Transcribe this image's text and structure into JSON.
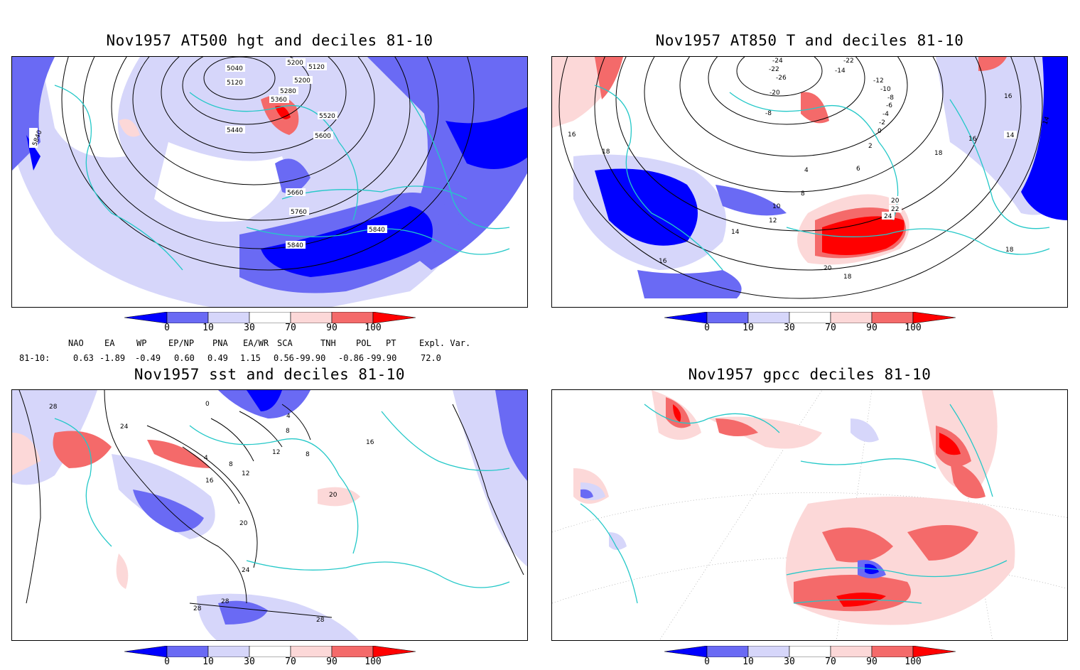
{
  "panels": [
    {
      "title": "Nov1957 AT500 hgt and deciles 81-10",
      "contour_labels": [
        "5040",
        "5200",
        "5120",
        "5120",
        "5200",
        "5280",
        "5360",
        "5520",
        "5440",
        "5600",
        "5840",
        "5660",
        "5760",
        "5840",
        "5840"
      ]
    },
    {
      "title": "Nov1957 AT850 T and deciles 81-10",
      "contour_labels": [
        "-24",
        "-22",
        "-26",
        "-22",
        "-20",
        "-14",
        "-12",
        "-10",
        "-8",
        "-8",
        "-6",
        "-4",
        "-2",
        "0",
        "2",
        "4",
        "6",
        "8",
        "10",
        "12",
        "14",
        "16",
        "16",
        "18",
        "18",
        "16",
        "14",
        "14",
        "20",
        "22",
        "24",
        "20",
        "18",
        "18",
        "16"
      ]
    },
    {
      "title": "Nov1957 sst and deciles 81-10",
      "contour_labels": [
        "28",
        "24",
        "0",
        "4",
        "4",
        "8",
        "12",
        "16",
        "8",
        "12",
        "8",
        "16",
        "20",
        "20",
        "24",
        "28",
        "28",
        "28"
      ]
    },
    {
      "title": "Nov1957 gpcc deciles 81-10",
      "contour_labels": []
    }
  ],
  "colorbar": {
    "labels": [
      "0",
      "10",
      "30",
      "70",
      "90",
      "100"
    ],
    "colors": [
      "#0000ff",
      "#6a6af4",
      "#d6d6fa",
      "#ffffff",
      "#fcd8d8",
      "#f46a6a",
      "#ff0000"
    ]
  },
  "indices": {
    "row_label": "81-10:",
    "headers": [
      "NAO",
      "EA",
      "WP",
      "EP/NP",
      "PNA",
      "EA/WR",
      "SCA",
      "TNH",
      "POL",
      "PT",
      "Expl. Var."
    ],
    "values": [
      "0.63",
      "-1.89",
      "-0.49",
      "0.60",
      "0.49",
      "1.15",
      "0.56",
      "-99.90",
      "-0.86",
      "-99.90",
      "72.0"
    ]
  }
}
